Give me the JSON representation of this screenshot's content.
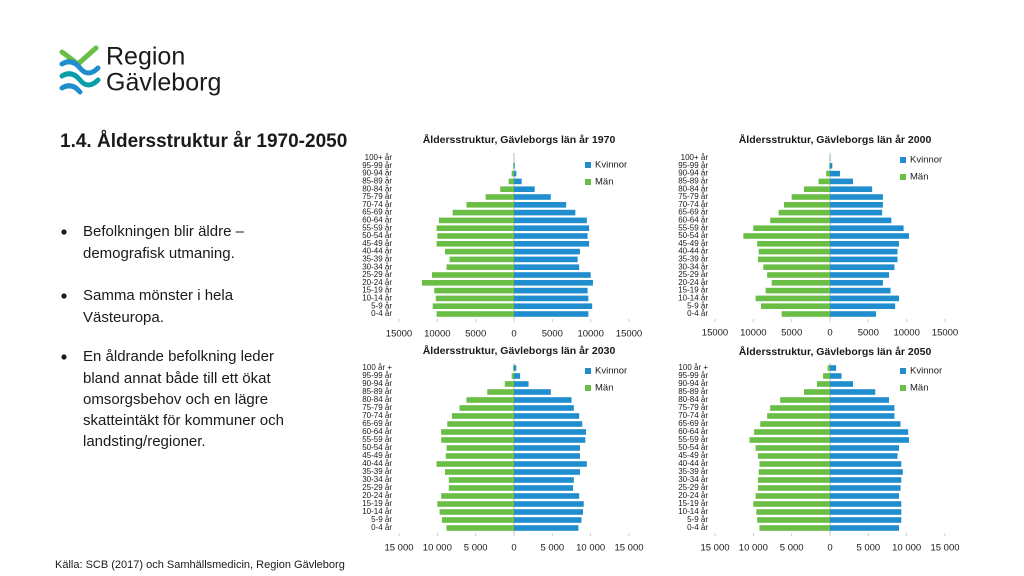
{
  "logo": {
    "line1": "Region",
    "line2": "Gävleborg"
  },
  "heading": "1.4.  Åldersstruktur år 1970-2050",
  "bullets": [
    [
      "Befolkningen blir äldre –",
      "demografisk utmaning."
    ],
    [
      "Samma mönster i hela",
      "Västeuropa."
    ],
    [
      "En åldrande befolkning leder",
      "bland annat både till ett ökat",
      "omsorgsbehov och en lägre",
      "skatteintäkt för kommuner och",
      "landsting/regioner."
    ]
  ],
  "source": "Källa: SCB (2017) och Samhällsmedicin, Region Gävleborg",
  "chart_data": [
    {
      "type": "bar",
      "orientation": "horizontal",
      "title": "Åldersstruktur, Gävleborgs län år 1970",
      "categories": [
        "0-4 år",
        "5-9 år",
        "10-14 år",
        "15-19 år",
        "20-24 år",
        "25-29 år",
        "30-34 år",
        "35-39 år",
        "40-44 år",
        "45-49 år",
        "50-54 år",
        "55-59 år",
        "60-64 år",
        "65-69 år",
        "70-74 år",
        "75-79 år",
        "80-84 år",
        "85-89 år",
        "90-94 år",
        "95-99 år",
        "100+ år"
      ],
      "series": [
        {
          "name": "Kvinnor",
          "color": "#1f8dce",
          "values": [
            9700,
            10200,
            9700,
            9600,
            10300,
            10000,
            8500,
            8300,
            8600,
            9800,
            9600,
            9800,
            9500,
            8000,
            6800,
            4800,
            2700,
            1000,
            300,
            100,
            0
          ]
        },
        {
          "name": "Män",
          "color": "#6abd45",
          "values": [
            -10100,
            -10600,
            -10200,
            -10400,
            -12000,
            -10700,
            -8800,
            -8400,
            -9000,
            -10100,
            -10000,
            -10100,
            -9800,
            -8000,
            -6200,
            -3700,
            -1800,
            -700,
            -300,
            -100,
            0
          ]
        }
      ],
      "xlim": [
        -15000,
        15000
      ],
      "xticks": [
        {
          "value": -15000,
          "label": "15000"
        },
        {
          "value": -10000,
          "label": "10000"
        },
        {
          "value": -5000,
          "label": "5000"
        },
        0,
        5000,
        10000,
        15000
      ]
    },
    {
      "type": "bar",
      "orientation": "horizontal",
      "title": "Åldersstruktur, Gävleborgs län år 2000",
      "categories": [
        "0-4 år",
        "5-9 år",
        "10-14 år",
        "15-19 år",
        "20-24 år",
        "25-29 år",
        "30-34 år",
        "35-39 år",
        "40-44 år",
        "45-49 år",
        "50-54 år",
        "55-59 år",
        "60-64 år",
        "65-69 år",
        "70-74 år",
        "75-79 år",
        "80-84 år",
        "85-89 år",
        "90-94 år",
        "95-99 år",
        "100+ år"
      ],
      "series": [
        {
          "name": "Kvinnor",
          "color": "#1f8dce",
          "values": [
            6000,
            8500,
            9000,
            7900,
            6900,
            7700,
            8400,
            8800,
            8800,
            9000,
            10300,
            9600,
            8000,
            6800,
            6900,
            6900,
            5500,
            3000,
            1300,
            300,
            50
          ]
        },
        {
          "name": "Män",
          "color": "#6abd45",
          "values": [
            -6300,
            -9000,
            -9700,
            -8400,
            -7600,
            -8200,
            -8700,
            -9400,
            -9300,
            -9500,
            -11300,
            -10000,
            -7800,
            -6700,
            -6000,
            -5000,
            -3400,
            -1500,
            -500,
            -100,
            -10
          ]
        }
      ],
      "xlim": [
        -15000,
        15000
      ],
      "xticks": [
        {
          "value": -15000,
          "label": "15000"
        },
        {
          "value": -10000,
          "label": "10000"
        },
        {
          "value": -5000,
          "label": "5000"
        },
        0,
        5000,
        10000,
        15000
      ]
    },
    {
      "type": "bar",
      "orientation": "horizontal",
      "title": "Åldersstruktur, Gävleborgs län år 2030",
      "categories": [
        "0-4 år",
        "5-9 år",
        "10-14 år",
        "15-19 år",
        "20-24 år",
        "25-29 år",
        "30-34 år",
        "35-39 år",
        "40-44 år",
        "45-49 år",
        "50-54 år",
        "55-59 år",
        "60-64 år",
        "65-69 år",
        "70-74 år",
        "75-79 år",
        "80-84 år",
        "85-89 år",
        "90-94 år",
        "95-99 år",
        "100 år +"
      ],
      "series": [
        {
          "name": "Kvinnor",
          "color": "#1f8dce",
          "values": [
            8400,
            8800,
            9000,
            9100,
            8500,
            7700,
            7800,
            8600,
            9500,
            8600,
            8600,
            9300,
            9400,
            8900,
            8500,
            7800,
            7500,
            4800,
            1900,
            800,
            300
          ]
        },
        {
          "name": "Män",
          "color": "#6abd45",
          "values": [
            -8800,
            -9400,
            -9700,
            -10000,
            -9500,
            -8500,
            -8500,
            -9000,
            -10100,
            -8900,
            -8800,
            -9500,
            -9500,
            -8700,
            -8100,
            -7100,
            -6200,
            -3500,
            -1200,
            -300,
            -100
          ]
        }
      ],
      "xlim": [
        -15000,
        15000
      ],
      "xticks": [
        {
          "value": -15000,
          "label": "15 000"
        },
        {
          "value": -10000,
          "label": "10 000"
        },
        {
          "value": -5000,
          "label": "5 000"
        },
        0,
        {
          "value": 5000,
          "label": "5 000"
        },
        {
          "value": 10000,
          "label": "10 000"
        },
        {
          "value": 15000,
          "label": "15 000"
        }
      ]
    },
    {
      "type": "bar",
      "orientation": "horizontal",
      "title": "Åldersstruktur, Gävleborgs län år 2050",
      "categories": [
        "0-4 år",
        "5-9 år",
        "10-14 år",
        "15-19 år",
        "20-24 år",
        "25-29 år",
        "30-34 år",
        "35-39 år",
        "40-44 år",
        "45-49 år",
        "50-54 år",
        "55-59 år",
        "60-64 år",
        "65-69 år",
        "70-74 år",
        "75-79 år",
        "80-84 år",
        "85-89 år",
        "90-94 år",
        "95-99 år",
        "100 år +"
      ],
      "series": [
        {
          "name": "Kvinnor",
          "color": "#1f8dce",
          "values": [
            9000,
            9300,
            9300,
            9300,
            9000,
            9200,
            9300,
            9500,
            9300,
            8800,
            9000,
            10300,
            10200,
            9200,
            8400,
            8400,
            7700,
            5900,
            3000,
            1500,
            800
          ]
        },
        {
          "name": "Män",
          "color": "#6abd45",
          "values": [
            -9200,
            -9500,
            -9600,
            -10000,
            -9700,
            -9400,
            -9400,
            -9300,
            -9200,
            -9400,
            -9700,
            -10500,
            -9900,
            -9100,
            -8200,
            -7800,
            -6500,
            -3400,
            -1700,
            -900,
            -300
          ]
        }
      ],
      "xlim": [
        -15000,
        15000
      ],
      "xticks": [
        {
          "value": -15000,
          "label": "15 000"
        },
        {
          "value": -10000,
          "label": "10 000"
        },
        {
          "value": -5000,
          "label": "5 000"
        },
        0,
        {
          "value": 5000,
          "label": "5 000"
        },
        {
          "value": 10000,
          "label": "10 000"
        },
        {
          "value": 15000,
          "label": "15 000"
        }
      ]
    }
  ]
}
